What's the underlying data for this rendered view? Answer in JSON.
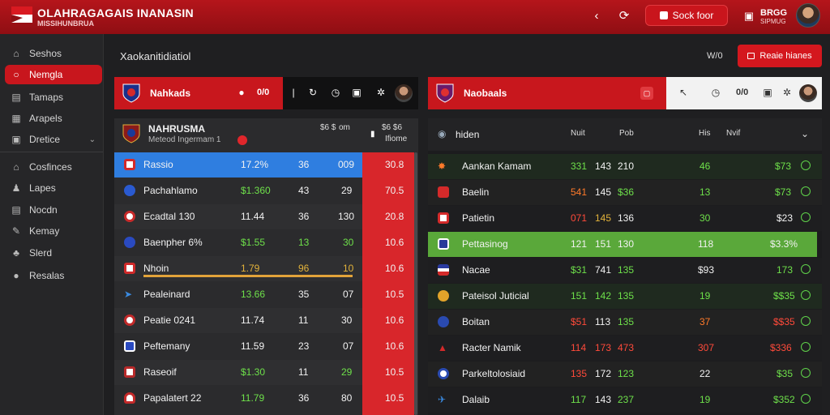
{
  "header": {
    "brand": "OLAHRAGAGAIS INANASIN",
    "brand_sub": "MISSIHUNBRUA",
    "cta_label": "Sock foor",
    "badge_text": "BRGG",
    "badge_sub": "SIPMUG",
    "brand_color": "#b5151b"
  },
  "sidebar": {
    "items": [
      {
        "label": "Seshos",
        "icon": "home-icon"
      },
      {
        "label": "Nemgla",
        "icon": "search-icon",
        "active": true
      },
      {
        "label": "Tamaps",
        "icon": "list-icon"
      },
      {
        "label": "Arapels",
        "icon": "grid-icon"
      },
      {
        "label": "Dretice",
        "icon": "box-icon"
      },
      {
        "label": "Cosfinces",
        "icon": "person-icon"
      },
      {
        "label": "Lapes",
        "icon": "users-icon"
      },
      {
        "label": "Nocdn",
        "icon": "calendar-icon"
      },
      {
        "label": "Kemay",
        "icon": "pen-icon"
      },
      {
        "label": "Slerd",
        "icon": "stack-icon"
      },
      {
        "label": "Resalas",
        "icon": "user-icon"
      }
    ]
  },
  "main": {
    "page_title": "Xaokanitidiatiol",
    "toolbar_label": "W/0",
    "action_label": "Reaie hianes"
  },
  "left_panel": {
    "header_title": "Nahkads",
    "header_value": "0/0",
    "team_title": "NAHRUSMA",
    "team_sub": "Meteod Ingermam 1",
    "col1": "$6 $",
    "col2": "om",
    "col3": "$6 $6",
    "col3b": "Ifiome",
    "rows": [
      {
        "name": "Rassio",
        "c1": "17.2%",
        "c2": "36",
        "c3": "009",
        "c4": "30.8"
      },
      {
        "name": "Pachahlamo",
        "c1": "$1.360",
        "c2": "43",
        "c3": "29",
        "c4": "70.5"
      },
      {
        "name": "Ecadtal 130",
        "c1": "11.44",
        "c2": "36",
        "c3": "130",
        "c4": "20.8"
      },
      {
        "name": "Baenpher 6%",
        "c1": "$1.55",
        "c2": "13",
        "c3": "30",
        "c4": "10.6"
      },
      {
        "name": "Nhoin",
        "c1": "1.79",
        "c2": "96",
        "c3": "10",
        "c4": "10.6"
      },
      {
        "name": "Pealeinard",
        "c1": "13.66",
        "c2": "35",
        "c3": "07",
        "c4": "10.5"
      },
      {
        "name": "Peatie 0241",
        "c1": "11.74",
        "c2": "11",
        "c3": "30",
        "c4": "10.6"
      },
      {
        "name": "Peftemany",
        "c1": "11.59",
        "c2": "23",
        "c3": "07",
        "c4": "10.6"
      },
      {
        "name": "Raseoif",
        "c1": "$1.30",
        "c2": "11",
        "c3": "29",
        "c4": "10.5"
      },
      {
        "name": "Papalatert 22",
        "c1": "11.79",
        "c2": "36",
        "c3": "80",
        "c4": "10.5"
      }
    ]
  },
  "right_panel": {
    "header_title": "Naobaals",
    "header_value": "0/0",
    "col_name": "hiden",
    "col1": "Nuit",
    "col2": "Pob",
    "col3": "His",
    "col4": "Nvif",
    "rows": [
      {
        "name": "Aankan Kamam",
        "a": "331",
        "b": "143",
        "c": "210",
        "d": "46",
        "e": "$73"
      },
      {
        "name": "Baelin",
        "a": "541",
        "b": "145",
        "c": "$36",
        "d": "13",
        "e": "$73"
      },
      {
        "name": "Patietin",
        "a": "071",
        "b": "145",
        "c": "136",
        "d": "30",
        "e": "$23"
      },
      {
        "name": "Pettasinog",
        "a": "121",
        "b": "151",
        "c": "130",
        "d": "118",
        "e": "$3.3%"
      },
      {
        "name": "Nacae",
        "a": "$31",
        "b": "741",
        "c": "135",
        "d": "$93",
        "e": "173"
      },
      {
        "name": "Pateisol Juticial",
        "a": "151",
        "b": "142",
        "c": "135",
        "d": "19",
        "e": "$$35"
      },
      {
        "name": "Boitan",
        "a": "$51",
        "b": "113",
        "c": "135",
        "d": "37",
        "e": "$$35"
      },
      {
        "name": "Racter Namik",
        "a": "114",
        "b": "173",
        "c": "473",
        "d": "307",
        "e": "$336"
      },
      {
        "name": "Parkeltolosiaid",
        "a": "135",
        "b": "172",
        "c": "123",
        "d": "22",
        "e": "$35"
      },
      {
        "name": "Dalaib",
        "a": "117",
        "b": "143",
        "c": "237",
        "d": "19",
        "e": "$352"
      }
    ]
  }
}
